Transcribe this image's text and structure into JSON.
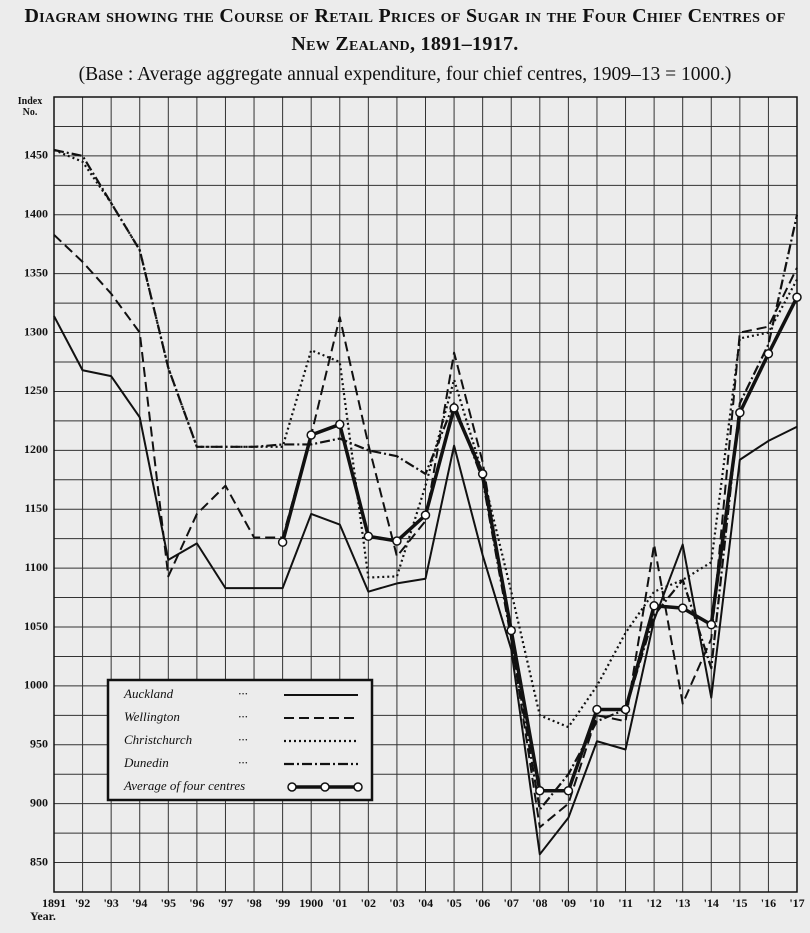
{
  "chart_data": {
    "type": "line",
    "title": "Diagram showing the Course of Retail Prices of Sugar in the Four Chief Centres of New Zealand, 1891–1917.",
    "subtitle": "(Base : Average aggregate annual expenditure, four chief centres, 1909–13 = 1000.)",
    "y_label": "Index No.",
    "x_label": "Year.",
    "categories": [
      "1891",
      "'92",
      "'93",
      "'94",
      "'95",
      "'96",
      "'97",
      "'98",
      "'99",
      "1900",
      "'01",
      "'02",
      "'03",
      "'04",
      "'05",
      "'06",
      "'07",
      "'08",
      "'09",
      "'10",
      "'11",
      "'12",
      "'13",
      "'14",
      "'15",
      "'16",
      "'17"
    ],
    "ylim": [
      825,
      1500
    ],
    "yticks": [
      850,
      900,
      950,
      1000,
      1050,
      1100,
      1150,
      1200,
      1250,
      1300,
      1350,
      1400,
      1450
    ],
    "ygrid": [
      825,
      850,
      875,
      900,
      925,
      950,
      975,
      1000,
      1025,
      1050,
      1075,
      1100,
      1125,
      1150,
      1175,
      1200,
      1225,
      1250,
      1275,
      1300,
      1325,
      1350,
      1375,
      1400,
      1425,
      1450,
      1475,
      1500
    ],
    "grid": true,
    "legend": "lower left",
    "series": [
      {
        "name": "Auckland",
        "color": "#111111",
        "style": "solid",
        "values": [
          1314,
          1268,
          1263,
          1228,
          1107,
          1121,
          1083,
          1083,
          1083,
          1146,
          1137,
          1080,
          1087,
          1091,
          1204,
          1111,
          1031,
          857,
          888,
          953,
          946,
          1056,
          1120,
          990,
          1192,
          1208,
          1220
        ]
      },
      {
        "name": "Wellington",
        "color": "#111111",
        "style": "dashed",
        "values": [
          1383,
          1360,
          1333,
          1300,
          1093,
          1146,
          1170,
          1126,
          1126,
          1213,
          1313,
          1205,
          1110,
          1140,
          1283,
          1190,
          1040,
          880,
          900,
          975,
          970,
          1120,
          985,
          1040,
          1300,
          1305,
          1355
        ]
      },
      {
        "name": "Christchurch",
        "color": "#111111",
        "style": "dotted",
        "values": [
          1455,
          1445,
          1410,
          1370,
          1270,
          1203,
          1203,
          1203,
          1203,
          1285,
          1275,
          1092,
          1093,
          1170,
          1260,
          1180,
          1080,
          975,
          965,
          1000,
          1045,
          1080,
          1090,
          1105,
          1295,
          1300,
          1345
        ]
      },
      {
        "name": "Dunedin",
        "color": "#111111",
        "style": "dashdot",
        "values": [
          1455,
          1450,
          1410,
          1370,
          1270,
          1203,
          1203,
          1203,
          1205,
          1205,
          1210,
          1200,
          1195,
          1180,
          1240,
          1175,
          1040,
          895,
          925,
          970,
          980,
          1060,
          1090,
          1015,
          1240,
          1290,
          1400
        ]
      },
      {
        "name": "Average of four centres",
        "color": "#111111",
        "style": "bold-markers",
        "values": [
          null,
          null,
          null,
          null,
          null,
          null,
          null,
          null,
          1122,
          1213,
          1222,
          1127,
          1123,
          1145,
          1236,
          1180,
          1047,
          911,
          911,
          980,
          980,
          1068,
          1066,
          1052,
          1232,
          1282,
          1330
        ]
      }
    ]
  }
}
